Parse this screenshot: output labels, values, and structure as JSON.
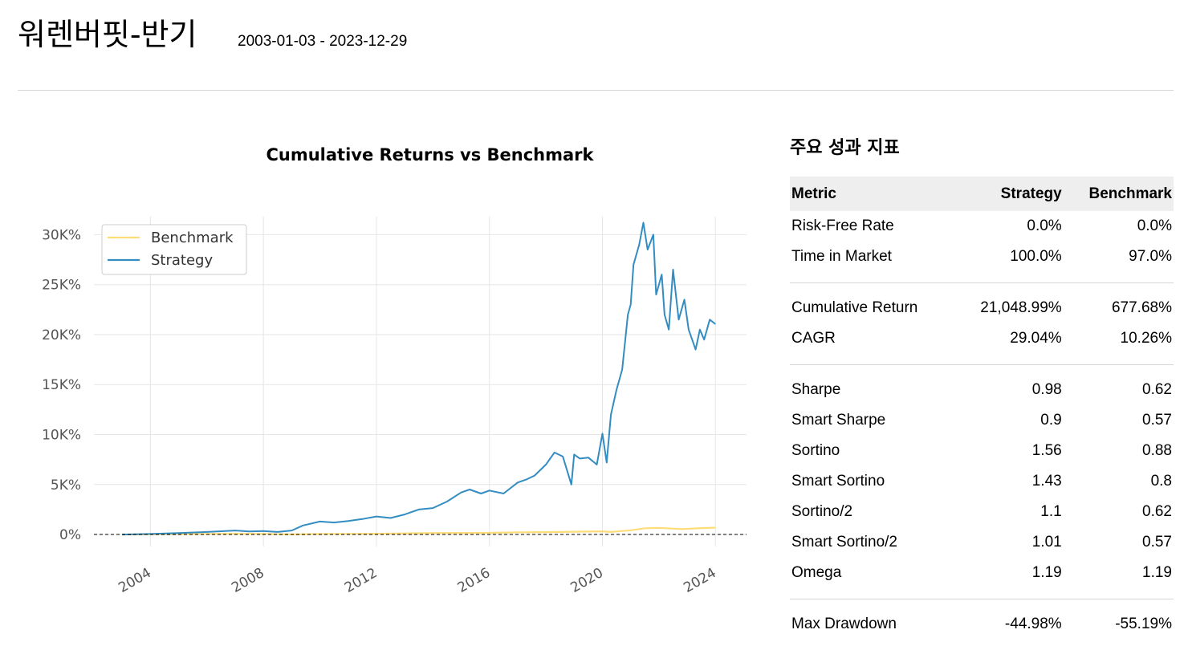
{
  "header": {
    "title": "워렌버핏-반기",
    "date_range": "2003-01-03 - 2023-12-29"
  },
  "chart_data": {
    "type": "line",
    "title": "Cumulative Returns vs Benchmark",
    "xlabel": "",
    "ylabel": "",
    "x_tick_labels": [
      "2004",
      "2008",
      "2012",
      "2016",
      "2020",
      "2024"
    ],
    "y_tick_labels": [
      "0%",
      "5K%",
      "10K%",
      "15K%",
      "20K%",
      "25K%",
      "30K%"
    ],
    "y_ticks": [
      0,
      5000,
      10000,
      15000,
      20000,
      25000,
      30000
    ],
    "x_ticks": [
      2004,
      2008,
      2012,
      2016,
      2020,
      2024
    ],
    "xlim": [
      2002.0,
      2025.1
    ],
    "ylim": [
      -1200,
      31800
    ],
    "grid": true,
    "legend_position": "top-left",
    "baseline": 0,
    "series": [
      {
        "name": "Benchmark",
        "color": "#fedd78",
        "x": [
          2003.0,
          2004.0,
          2005.0,
          2006.0,
          2007.0,
          2008.0,
          2008.8,
          2009.2,
          2010.0,
          2011.0,
          2012.0,
          2013.0,
          2014.0,
          2015.0,
          2016.0,
          2017.0,
          2018.0,
          2019.0,
          2020.0,
          2020.3,
          2021.0,
          2021.5,
          2022.0,
          2022.8,
          2023.5,
          2024.0
        ],
        "y": [
          0,
          20,
          35,
          50,
          70,
          60,
          10,
          15,
          50,
          60,
          75,
          110,
          150,
          160,
          165,
          220,
          240,
          280,
          320,
          250,
          420,
          620,
          660,
          540,
          640,
          678
        ]
      },
      {
        "name": "Strategy",
        "color": "#348dc1",
        "x": [
          2003.0,
          2004.0,
          2005.0,
          2006.0,
          2007.0,
          2007.5,
          2008.0,
          2008.5,
          2009.0,
          2009.4,
          2010.0,
          2010.5,
          2011.0,
          2011.5,
          2012.0,
          2012.5,
          2013.0,
          2013.5,
          2014.0,
          2014.5,
          2015.0,
          2015.3,
          2015.7,
          2016.0,
          2016.5,
          2017.0,
          2017.3,
          2017.6,
          2018.0,
          2018.3,
          2018.6,
          2018.9,
          2019.0,
          2019.2,
          2019.5,
          2019.8,
          2020.0,
          2020.15,
          2020.3,
          2020.5,
          2020.7,
          2020.9,
          2021.0,
          2021.1,
          2021.3,
          2021.45,
          2021.6,
          2021.8,
          2021.9,
          2022.1,
          2022.2,
          2022.35,
          2022.5,
          2022.7,
          2022.9,
          2023.05,
          2023.3,
          2023.45,
          2023.6,
          2023.8,
          2024.0
        ],
        "y": [
          0,
          50,
          150,
          250,
          400,
          300,
          350,
          250,
          400,
          900,
          1300,
          1200,
          1350,
          1550,
          1800,
          1650,
          2000,
          2500,
          2650,
          3300,
          4200,
          4500,
          4100,
          4400,
          4100,
          5200,
          5500,
          5900,
          7000,
          8200,
          7800,
          5000,
          8000,
          7600,
          7700,
          7000,
          10100,
          7200,
          12000,
          14500,
          16500,
          22000,
          23000,
          27000,
          29000,
          31200,
          28500,
          30000,
          24000,
          26000,
          22000,
          20500,
          26500,
          21500,
          23500,
          20500,
          18500,
          20500,
          19500,
          21500,
          21049
        ]
      }
    ]
  },
  "metrics": {
    "title": "주요 성과 지표",
    "columns": [
      "Metric",
      "Strategy",
      "Benchmark"
    ],
    "rows": [
      [
        "Risk-Free Rate",
        "0.0%",
        "0.0%"
      ],
      [
        "Time in Market",
        "100.0%",
        "97.0%"
      ],
      [
        "Cumulative Return",
        "21,048.99%",
        "677.68%"
      ],
      [
        "CAGR",
        "29.04%",
        "10.26%"
      ],
      [
        "Sharpe",
        "0.98",
        "0.62"
      ],
      [
        "Smart Sharpe",
        "0.9",
        "0.57"
      ],
      [
        "Sortino",
        "1.56",
        "0.88"
      ],
      [
        "Smart Sortino",
        "1.43",
        "0.8"
      ],
      [
        "Sortino/2",
        "1.1",
        "0.62"
      ],
      [
        "Smart Sortino/2",
        "1.01",
        "0.57"
      ],
      [
        "Omega",
        "1.19",
        "1.19"
      ],
      [
        "Max Drawdown",
        "-44.98%",
        "-55.19%"
      ]
    ]
  }
}
